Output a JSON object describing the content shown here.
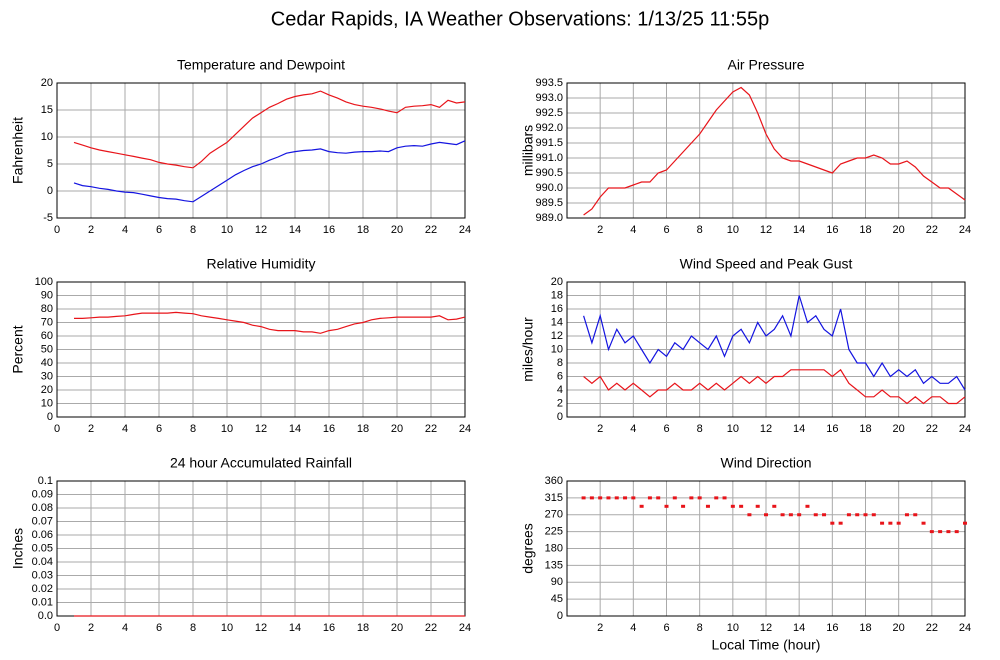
{
  "title": "Cedar Rapids, IA Weather Observations: 1/13/25 11:55p",
  "chart_data": [
    {
      "type": "line",
      "title": "Temperature and Dewpoint",
      "ylabel": "Fahrenheit",
      "xlim": [
        0,
        24
      ],
      "xticks": [
        0,
        2,
        4,
        6,
        8,
        10,
        12,
        14,
        16,
        18,
        20,
        22,
        24
      ],
      "ylim": [
        -5,
        20
      ],
      "yticks": [
        -5,
        0,
        5,
        10,
        15,
        20
      ],
      "grid": true,
      "x": [
        1,
        1.5,
        2,
        2.5,
        3,
        3.5,
        4,
        4.5,
        5,
        5.5,
        6,
        6.5,
        7,
        7.5,
        8,
        8.5,
        9,
        9.5,
        10,
        10.5,
        11,
        11.5,
        12,
        12.5,
        13,
        13.5,
        14,
        14.5,
        15,
        15.5,
        16,
        16.5,
        17,
        17.5,
        18,
        18.5,
        19,
        19.5,
        20,
        20.5,
        21,
        21.5,
        22,
        22.5,
        23,
        23.5,
        24
      ],
      "series": [
        {
          "color": "#e8141a",
          "values": [
            9,
            8.5,
            8,
            7.6,
            7.3,
            7,
            6.7,
            6.4,
            6.1,
            5.8,
            5.3,
            5,
            4.8,
            4.5,
            4.3,
            5.5,
            7,
            8,
            9,
            10.5,
            12,
            13.5,
            14.5,
            15.5,
            16.2,
            17,
            17.5,
            17.8,
            18,
            18.5,
            17.8,
            17.2,
            16.5,
            16,
            15.7,
            15.5,
            15.2,
            14.8,
            14.5,
            15.5,
            15.7,
            15.8,
            16,
            15.5,
            16.8,
            16.3,
            16.5
          ]
        },
        {
          "color": "#1414e0",
          "values": [
            1.5,
            1,
            0.8,
            0.5,
            0.3,
            0,
            -0.2,
            -0.3,
            -0.6,
            -0.9,
            -1.2,
            -1.4,
            -1.5,
            -1.8,
            -2,
            -1,
            0,
            1,
            2,
            3,
            3.8,
            4.5,
            5,
            5.7,
            6.3,
            7,
            7.3,
            7.5,
            7.6,
            7.8,
            7.3,
            7.1,
            7,
            7.2,
            7.3,
            7.3,
            7.4,
            7.3,
            8,
            8.3,
            8.4,
            8.3,
            8.7,
            9,
            8.8,
            8.6,
            9.3
          ]
        }
      ]
    },
    {
      "type": "line",
      "title": "Air Pressure",
      "ylabel": "millibars",
      "xlim": [
        0,
        24
      ],
      "xticks": [
        2,
        4,
        6,
        8,
        10,
        12,
        14,
        16,
        18,
        20,
        22,
        24
      ],
      "ylim": [
        989,
        993.5
      ],
      "yticks": [
        {
          "value": 989,
          "label": "989.0"
        },
        989.5,
        {
          "value": 990,
          "label": "990.0"
        },
        990.5,
        {
          "value": 991,
          "label": "991.0"
        },
        991.5,
        {
          "value": 992,
          "label": "992.0"
        },
        992.5,
        {
          "value": 993,
          "label": "993.0"
        },
        993.5
      ],
      "grid": true,
      "x": [
        1,
        1.5,
        2,
        2.5,
        3,
        3.5,
        4,
        4.5,
        5,
        5.5,
        6,
        6.5,
        7,
        7.5,
        8,
        8.5,
        9,
        9.5,
        10,
        10.5,
        11,
        11.5,
        12,
        12.5,
        13,
        13.5,
        14,
        14.5,
        15,
        15.5,
        16,
        16.5,
        17,
        17.5,
        18,
        18.5,
        19,
        19.5,
        20,
        20.5,
        21,
        21.5,
        22,
        22.5,
        23,
        23.5,
        24
      ],
      "series": [
        {
          "color": "#e8141a",
          "values": [
            989.1,
            989.3,
            989.7,
            990,
            990,
            990,
            990.1,
            990.2,
            990.2,
            990.5,
            990.6,
            990.9,
            991.2,
            991.5,
            991.8,
            992.2,
            992.6,
            992.9,
            993.2,
            993.35,
            993.1,
            992.5,
            991.8,
            991.3,
            991,
            990.9,
            990.9,
            990.8,
            990.7,
            990.6,
            990.5,
            990.8,
            990.9,
            991,
            991,
            991.1,
            991,
            990.8,
            990.8,
            990.9,
            990.7,
            990.4,
            990.2,
            990,
            990,
            989.8,
            989.6
          ]
        }
      ]
    },
    {
      "type": "line",
      "title": "Relative Humidity",
      "ylabel": "Percent",
      "xlim": [
        0,
        24
      ],
      "xticks": [
        0,
        2,
        4,
        6,
        8,
        10,
        12,
        14,
        16,
        18,
        20,
        22,
        24
      ],
      "ylim": [
        0,
        100
      ],
      "yticks": [
        0,
        10,
        20,
        30,
        40,
        50,
        60,
        70,
        80,
        90,
        100
      ],
      "grid": true,
      "x": [
        1,
        1.5,
        2,
        2.5,
        3,
        3.5,
        4,
        4.5,
        5,
        5.5,
        6,
        6.5,
        7,
        7.5,
        8,
        8.5,
        9,
        9.5,
        10,
        10.5,
        11,
        11.5,
        12,
        12.5,
        13,
        13.5,
        14,
        14.5,
        15,
        15.5,
        16,
        16.5,
        17,
        17.5,
        18,
        18.5,
        19,
        19.5,
        20,
        20.5,
        21,
        21.5,
        22,
        22.5,
        23,
        23.5,
        24
      ],
      "series": [
        {
          "color": "#e8141a",
          "values": [
            73,
            73,
            73.5,
            74,
            74,
            74.5,
            75,
            76,
            77,
            77,
            77,
            77,
            77.5,
            77,
            76.5,
            75,
            74,
            73,
            72,
            71,
            70,
            68,
            67,
            65,
            64,
            64,
            64,
            63,
            63,
            62,
            64,
            65,
            67,
            69,
            70,
            72,
            73,
            73.5,
            74,
            74,
            74,
            74,
            74,
            75,
            72,
            72.5,
            74
          ]
        }
      ]
    },
    {
      "type": "line",
      "title": "Wind Speed and Peak Gust",
      "ylabel": "miles/hour",
      "xlim": [
        0,
        24
      ],
      "xticks": [
        2,
        4,
        6,
        8,
        10,
        12,
        14,
        16,
        18,
        20,
        22,
        24
      ],
      "ylim": [
        0,
        20
      ],
      "yticks": [
        0,
        2,
        4,
        6,
        8,
        10,
        12,
        14,
        16,
        18,
        20
      ],
      "grid": true,
      "x": [
        1,
        1.5,
        2,
        2.5,
        3,
        3.5,
        4,
        4.5,
        5,
        5.5,
        6,
        6.5,
        7,
        7.5,
        8,
        8.5,
        9,
        9.5,
        10,
        10.5,
        11,
        11.5,
        12,
        12.5,
        13,
        13.5,
        14,
        14.5,
        15,
        15.5,
        16,
        16.5,
        17,
        17.5,
        18,
        18.5,
        19,
        19.5,
        20,
        20.5,
        21,
        21.5,
        22,
        22.5,
        23,
        23.5,
        24
      ],
      "series": [
        {
          "color": "#1414e0",
          "values": [
            15,
            11,
            15,
            10,
            13,
            11,
            12,
            10,
            8,
            10,
            9,
            11,
            10,
            12,
            11,
            10,
            12,
            9,
            12,
            13,
            11,
            14,
            12,
            13,
            15,
            12,
            18,
            14,
            15,
            13,
            12,
            16,
            10,
            8,
            8,
            6,
            8,
            6,
            7,
            6,
            7,
            5,
            6,
            5,
            5,
            6,
            4
          ]
        },
        {
          "color": "#e8141a",
          "values": [
            6,
            5,
            6,
            4,
            5,
            4,
            5,
            4,
            3,
            4,
            4,
            5,
            4,
            4,
            5,
            4,
            5,
            4,
            5,
            6,
            5,
            6,
            5,
            6,
            6,
            7,
            7,
            7,
            7,
            7,
            6,
            7,
            5,
            4,
            3,
            3,
            4,
            3,
            3,
            2,
            3,
            2,
            3,
            3,
            2,
            2,
            3
          ]
        }
      ]
    },
    {
      "type": "line",
      "title": "24 hour Accumulated Rainfall",
      "ylabel": "Inches",
      "xlim": [
        0,
        24
      ],
      "xticks": [
        0,
        2,
        4,
        6,
        8,
        10,
        12,
        14,
        16,
        18,
        20,
        22,
        24
      ],
      "ylim": [
        0,
        0.1
      ],
      "yticks": [
        {
          "value": 0,
          "label": "0.0"
        },
        0.01,
        0.02,
        0.03,
        0.04,
        0.05,
        0.06,
        0.07,
        0.08,
        0.09,
        0.1
      ],
      "grid": true,
      "x": [
        1,
        24
      ],
      "series": [
        {
          "color": "#e8141a",
          "values": [
            0,
            0
          ]
        }
      ]
    },
    {
      "type": "scatter",
      "title": "Wind Direction",
      "ylabel": "degrees",
      "xlabel": "Local Time (hour)",
      "xlim": [
        0,
        24
      ],
      "xticks": [
        2,
        4,
        6,
        8,
        10,
        12,
        14,
        16,
        18,
        20,
        22,
        24
      ],
      "ylim": [
        0,
        360
      ],
      "yticks": [
        0,
        45,
        90,
        135,
        180,
        225,
        270,
        315,
        360
      ],
      "grid": true,
      "x": [
        1,
        1.5,
        2,
        2.5,
        3,
        3.5,
        4,
        4.5,
        5,
        5.5,
        6,
        6.5,
        7,
        7.5,
        8,
        8.5,
        9,
        9.5,
        10,
        10.5,
        11,
        11.5,
        12,
        12.5,
        13,
        13.5,
        14,
        14.5,
        15,
        15.5,
        16,
        16.5,
        17,
        17.5,
        18,
        18.5,
        19,
        19.5,
        20,
        20.5,
        21,
        21.5,
        22,
        22.5,
        23,
        23.5,
        24
      ],
      "series": [
        {
          "color": "#e8141a",
          "values": [
            315,
            315,
            315,
            315,
            315,
            315,
            315,
            292.5,
            315,
            315,
            292.5,
            315,
            292.5,
            315,
            315,
            292.5,
            315,
            315,
            292.5,
            292.5,
            270,
            292.5,
            270,
            292.5,
            270,
            270,
            270,
            292.5,
            270,
            270,
            247.5,
            247.5,
            270,
            270,
            270,
            270,
            247.5,
            247.5,
            247.5,
            270,
            270,
            247.5,
            225,
            225,
            225,
            225,
            247.5
          ]
        }
      ]
    }
  ]
}
